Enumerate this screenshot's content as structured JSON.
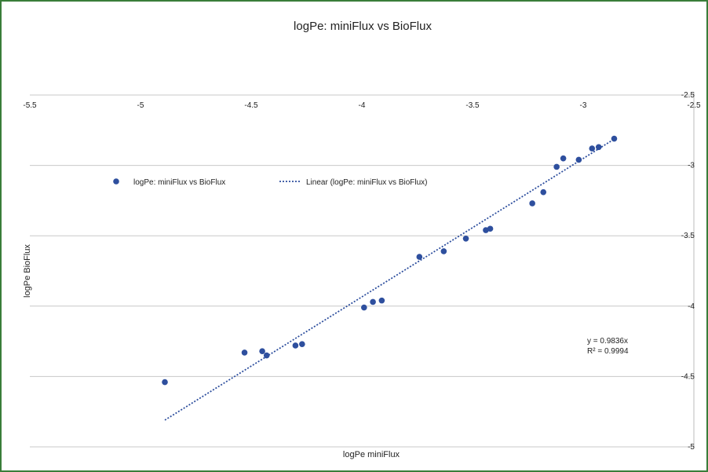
{
  "chart_data": {
    "type": "scatter",
    "title": "logPe: miniFlux vs BioFlux",
    "xlabel": "logPe miniFlux",
    "ylabel": "logPe BioFlux",
    "xlim": [
      -5.5,
      -2.5
    ],
    "ylim": [
      -5,
      -2.5
    ],
    "x_ticks": [
      "-5.5",
      "-5",
      "-4.5",
      "-4",
      "-3.5",
      "-3",
      "-2.5"
    ],
    "y_ticks": [
      "-2.5",
      "-3",
      "-3.5",
      "-4",
      "-4.5",
      "-5"
    ],
    "grid": "horizontal",
    "x_axis_position": "top",
    "y_axis_position": "right",
    "legend_position": "upper-left",
    "series": [
      {
        "name": "logPe: miniFlux vs BioFlux",
        "color": "#2e4f9e",
        "marker": "circle",
        "points": [
          {
            "x": -4.89,
            "y": -4.54
          },
          {
            "x": -4.53,
            "y": -4.33
          },
          {
            "x": -4.45,
            "y": -4.32
          },
          {
            "x": -4.43,
            "y": -4.35
          },
          {
            "x": -4.3,
            "y": -4.28
          },
          {
            "x": -4.27,
            "y": -4.27
          },
          {
            "x": -3.99,
            "y": -4.01
          },
          {
            "x": -3.95,
            "y": -3.97
          },
          {
            "x": -3.91,
            "y": -3.96
          },
          {
            "x": -3.74,
            "y": -3.65
          },
          {
            "x": -3.63,
            "y": -3.61
          },
          {
            "x": -3.53,
            "y": -3.52
          },
          {
            "x": -3.44,
            "y": -3.46
          },
          {
            "x": -3.42,
            "y": -3.45
          },
          {
            "x": -3.23,
            "y": -3.27
          },
          {
            "x": -3.18,
            "y": -3.19
          },
          {
            "x": -3.12,
            "y": -3.01
          },
          {
            "x": -3.09,
            "y": -2.95
          },
          {
            "x": -3.02,
            "y": -2.96
          },
          {
            "x": -2.96,
            "y": -2.88
          },
          {
            "x": -2.93,
            "y": -2.87
          },
          {
            "x": -2.86,
            "y": -2.81
          }
        ]
      },
      {
        "name": "Linear (logPe: miniFlux vs BioFlux)",
        "type": "line",
        "style": "dotted",
        "color": "#2e4f9e",
        "slope": 0.9836,
        "x_range": [
          -4.89,
          -2.87
        ]
      }
    ],
    "annotation": {
      "equation": "y = 0.9836x",
      "r2": "R² = 0.9994"
    }
  }
}
